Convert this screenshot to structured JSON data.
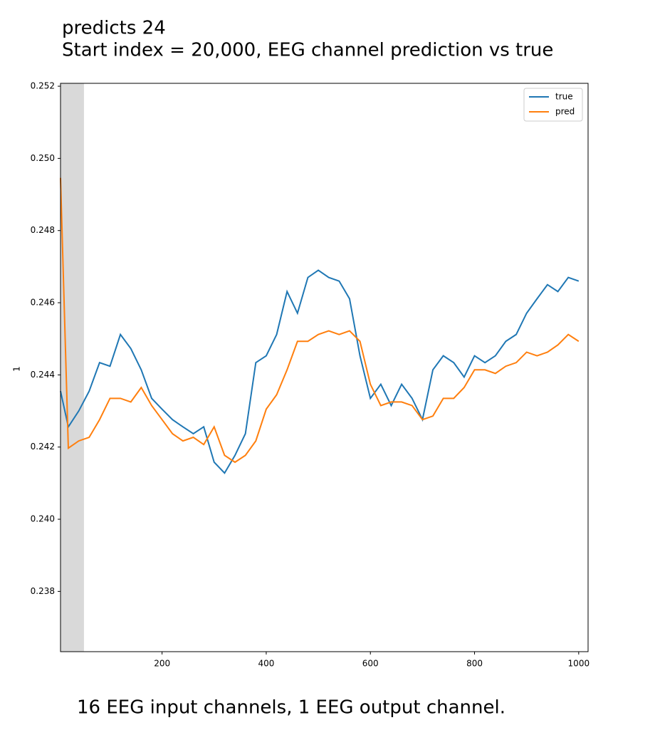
{
  "chart_data": {
    "type": "line",
    "title": "predicts 24",
    "subtitle": "Start index = 20,000, EEG channel prediction vs true",
    "footer": "16 EEG input channels, 1 EEG output channel.",
    "ylabel": "1",
    "x": [
      5,
      20,
      40,
      60,
      80,
      100,
      120,
      140,
      160,
      180,
      200,
      220,
      240,
      260,
      280,
      300,
      320,
      340,
      360,
      380,
      400,
      420,
      440,
      460,
      480,
      500,
      520,
      540,
      560,
      580,
      600,
      620,
      640,
      660,
      680,
      700,
      720,
      740,
      760,
      780,
      800,
      820,
      840,
      860,
      880,
      900,
      920,
      940,
      960,
      980,
      1000
    ],
    "series": [
      {
        "name": "true",
        "color": "#1f77b4",
        "values": [
          0.24355,
          0.24256,
          0.243,
          0.24355,
          0.24434,
          0.24424,
          0.24512,
          0.24473,
          0.24414,
          0.24335,
          0.24305,
          0.24276,
          0.24256,
          0.24237,
          0.24256,
          0.24158,
          0.24128,
          0.24177,
          0.24237,
          0.24434,
          0.24453,
          0.24512,
          0.24631,
          0.24571,
          0.2467,
          0.2469,
          0.2467,
          0.2466,
          0.24611,
          0.24453,
          0.24335,
          0.24374,
          0.24315,
          0.24374,
          0.24335,
          0.24276,
          0.24414,
          0.24453,
          0.24434,
          0.24394,
          0.24453,
          0.24434,
          0.24453,
          0.24493,
          0.24512,
          0.24571,
          0.24611,
          0.2465,
          0.24631,
          0.2467,
          0.2466
        ]
      },
      {
        "name": "pred",
        "color": "#ff7f0e",
        "values": [
          0.24946,
          0.24197,
          0.24217,
          0.24227,
          0.24276,
          0.24335,
          0.24335,
          0.24325,
          0.24365,
          0.24315,
          0.24276,
          0.24237,
          0.24217,
          0.24227,
          0.24207,
          0.24256,
          0.24177,
          0.24158,
          0.24177,
          0.24217,
          0.24305,
          0.24345,
          0.24414,
          0.24493,
          0.24493,
          0.24512,
          0.24522,
          0.24512,
          0.24522,
          0.24493,
          0.24374,
          0.24315,
          0.24325,
          0.24325,
          0.24315,
          0.24276,
          0.24286,
          0.24335,
          0.24335,
          0.24365,
          0.24414,
          0.24414,
          0.24404,
          0.24424,
          0.24434,
          0.24463,
          0.24453,
          0.24463,
          0.24483,
          0.24512,
          0.24493
        ]
      }
    ],
    "shade": [
      5,
      50
    ],
    "shade_color": "#d9d9d9",
    "xlim": [
      5,
      1018
    ],
    "ylim": [
      0.23633,
      0.25208
    ],
    "xticks": [
      200,
      400,
      600,
      800,
      1000
    ],
    "yticks": [
      {
        "value": 0.238,
        "label": "0.238"
      },
      {
        "value": 0.24,
        "label": "0.240"
      },
      {
        "value": 0.242,
        "label": "0.242"
      },
      {
        "value": 0.244,
        "label": "0.244"
      },
      {
        "value": 0.246,
        "label": "0.246"
      },
      {
        "value": 0.248,
        "label": "0.248"
      },
      {
        "value": 0.25,
        "label": "0.250"
      },
      {
        "value": 0.252,
        "label": "0.252"
      }
    ],
    "legend": "upper right"
  }
}
